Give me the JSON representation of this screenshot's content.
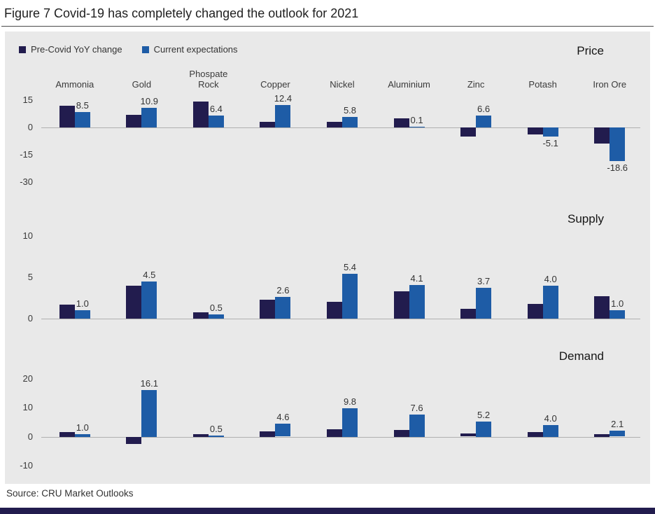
{
  "figure": {
    "title": "Figure 7 Covid-19 has completely changed the outlook for 2021"
  },
  "source": "Source: CRU Market Outlooks",
  "legend": [
    {
      "label": "Pre-Covid YoY change",
      "color": "#221c4e"
    },
    {
      "label": "Current expectations",
      "color": "#1e5ca6"
    }
  ],
  "colors": {
    "background": "#e9e9e9",
    "footer_bar": "#221c4e",
    "axis_line": "#b0b0b0"
  },
  "chart_data": {
    "type": "bar",
    "legend_position": "top-left",
    "categories": [
      "Ammonia",
      "Gold",
      "Phospate Rock",
      "Copper",
      "Nickel",
      "Aluminium",
      "Zinc",
      "Potash",
      "Iron Ore"
    ],
    "data_labels_series": "Current expectations",
    "panels": [
      {
        "title": "Price",
        "ylim": [
          -32,
          18
        ],
        "yticks": [
          15,
          0,
          -15,
          -30
        ],
        "series": [
          {
            "name": "Pre-Covid YoY change",
            "values": [
              12,
              7,
              14,
              3,
              3,
              5,
              -5,
              -4,
              -9
            ]
          },
          {
            "name": "Current expectations",
            "values": [
              8.5,
              10.9,
              6.4,
              12.4,
              5.8,
              0.1,
              6.6,
              -5.1,
              -18.6
            ]
          }
        ]
      },
      {
        "title": "Supply",
        "ylim": [
          0,
          11
        ],
        "yticks": [
          10,
          5,
          0
        ],
        "series": [
          {
            "name": "Pre-Covid YoY change",
            "values": [
              1.7,
              4.0,
              0.8,
              2.3,
              2.0,
              3.3,
              1.2,
              1.8,
              2.7
            ]
          },
          {
            "name": "Current expectations",
            "values": [
              1.0,
              4.5,
              0.5,
              2.6,
              5.4,
              4.1,
              3.7,
              4.0,
              1.0
            ]
          }
        ]
      },
      {
        "title": "Demand",
        "ylim": [
          -12,
          22
        ],
        "yticks": [
          20,
          10,
          0,
          -10
        ],
        "series": [
          {
            "name": "Pre-Covid YoY change",
            "values": [
              1.5,
              -2.5,
              0.8,
              1.8,
              2.5,
              2.3,
              1.2,
              1.5,
              1.0
            ]
          },
          {
            "name": "Current expectations",
            "values": [
              1.0,
              16.1,
              0.5,
              4.6,
              9.8,
              7.6,
              5.2,
              4.0,
              2.1
            ]
          }
        ]
      }
    ]
  }
}
